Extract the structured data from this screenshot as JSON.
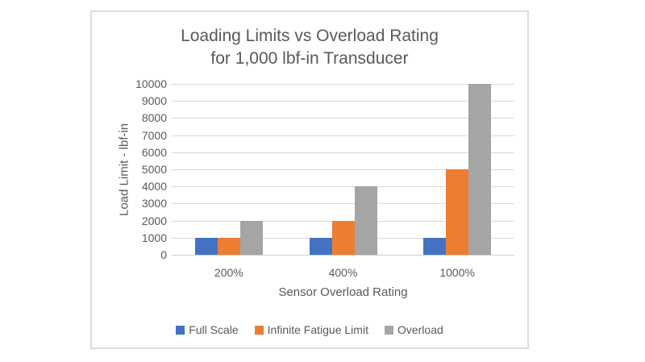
{
  "chart_data": {
    "type": "bar",
    "title": "Loading Limits vs Overload Rating",
    "subtitle": "for 1,000 lbf-in Transducer",
    "xlabel": "Sensor Overload Rating",
    "ylabel": "Load  Limit - lbf-in",
    "categories": [
      "200%",
      "400%",
      "1000%"
    ],
    "series": [
      {
        "name": "Full Scale",
        "color": "#4472C4",
        "values": [
          1000,
          1000,
          1000
        ]
      },
      {
        "name": "Infinite Fatigue Limit",
        "color": "#ED7D31",
        "values": [
          1000,
          2000,
          5000
        ]
      },
      {
        "name": "Overload",
        "color": "#A5A5A5",
        "values": [
          2000,
          4000,
          10000
        ]
      }
    ],
    "ylim": [
      0,
      10000
    ],
    "yticks": [
      0,
      1000,
      2000,
      3000,
      4000,
      5000,
      6000,
      7000,
      8000,
      9000,
      10000
    ],
    "grid": true,
    "legend_position": "bottom",
    "gridline_color": "#D9D9D9",
    "axis_line_color": "#CFCFCF",
    "text_color": "#595959"
  }
}
